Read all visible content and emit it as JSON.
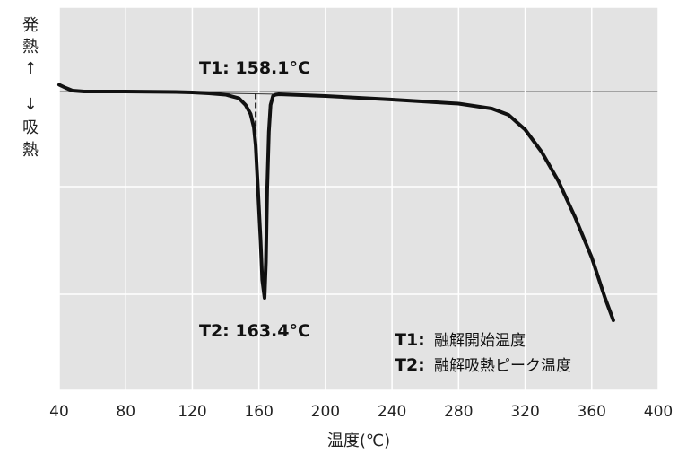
{
  "chart_data": {
    "type": "line",
    "xlabel": "温度(℃)",
    "ylabel_top": [
      "発",
      "熱",
      "↑"
    ],
    "ylabel_bottom": [
      "↓",
      "吸",
      "熱"
    ],
    "xlim": [
      40,
      400
    ],
    "x_ticks": [
      "40",
      "80",
      "120",
      "160",
      "200",
      "240",
      "280",
      "320",
      "360",
      "400"
    ],
    "grid": true,
    "background_color": "#e3e3e3",
    "grid_color": "#ffffff",
    "line_color": "#111111",
    "series": [
      {
        "points": [
          [
            40,
            0.15
          ],
          [
            44,
            0.08
          ],
          [
            48,
            0.02
          ],
          [
            55,
            0.0
          ],
          [
            80,
            0.0
          ],
          [
            110,
            -0.01
          ],
          [
            120,
            -0.02
          ],
          [
            130,
            -0.04
          ],
          [
            140,
            -0.07
          ],
          [
            148,
            -0.15
          ],
          [
            152,
            -0.3
          ],
          [
            155,
            -0.5
          ],
          [
            157,
            -0.8
          ],
          [
            158.1,
            -1.2
          ],
          [
            159.5,
            -2.2
          ],
          [
            161,
            -3.3
          ],
          [
            162,
            -4.2
          ],
          [
            163.4,
            -4.6
          ],
          [
            164.2,
            -3.8
          ],
          [
            165,
            -2.2
          ],
          [
            166,
            -0.9
          ],
          [
            167,
            -0.3
          ],
          [
            168.5,
            -0.1
          ],
          [
            170,
            -0.07
          ],
          [
            172,
            -0.06
          ],
          [
            200,
            -0.1
          ],
          [
            240,
            -0.18
          ],
          [
            280,
            -0.27
          ],
          [
            300,
            -0.38
          ],
          [
            310,
            -0.52
          ],
          [
            320,
            -0.85
          ],
          [
            330,
            -1.35
          ],
          [
            340,
            -2.0
          ],
          [
            350,
            -2.8
          ],
          [
            360,
            -3.7
          ],
          [
            368,
            -4.6
          ],
          [
            373,
            -5.1
          ]
        ]
      }
    ],
    "annotations": [
      {
        "label": "T1: 158.1°C",
        "x": 158.1
      },
      {
        "label": "T2: 163.4°C",
        "x": 163.4
      }
    ],
    "legend": [
      {
        "key": "T1:",
        "text": "融解開始温度"
      },
      {
        "key": "T2:",
        "text": "融解吸熱ピーク温度"
      }
    ]
  }
}
